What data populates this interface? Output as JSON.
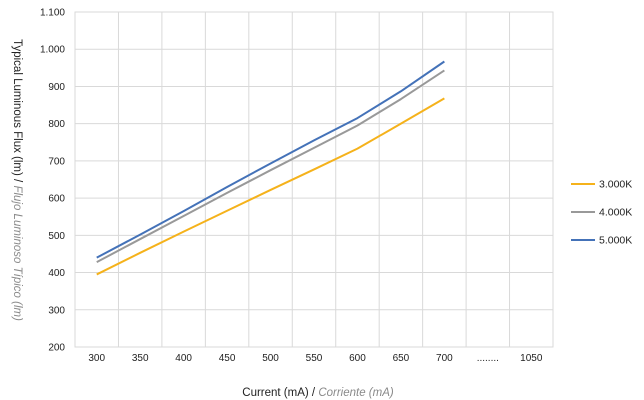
{
  "chart_data": {
    "type": "line",
    "x_ticks": [
      "300",
      "350",
      "400",
      "450",
      "500",
      "550",
      "600",
      "650",
      "700",
      "........",
      "1050"
    ],
    "y_ticks": [
      "200",
      "300",
      "400",
      "500",
      "600",
      "700",
      "800",
      "900",
      "1.000",
      "1.100"
    ],
    "ylim": [
      200,
      1100
    ],
    "grid": true,
    "legend_position": "right",
    "xlabel": {
      "main": "Current (mA)",
      "sep": " / ",
      "alt": "Corriente (mA)"
    },
    "ylabel": {
      "main": "Typical Luminous Flux (lm)",
      "sep": " / ",
      "alt": "Flujo Luminoso Típico (lm)"
    },
    "series": [
      {
        "name": "3.000K",
        "color": "#f5b21b",
        "points": [
          [
            300,
            395
          ],
          [
            350,
            453
          ],
          [
            400,
            510
          ],
          [
            450,
            566
          ],
          [
            500,
            622
          ],
          [
            550,
            677
          ],
          [
            600,
            733
          ],
          [
            650,
            800
          ],
          [
            700,
            868
          ]
        ]
      },
      {
        "name": "4.000K",
        "color": "#999999",
        "points": [
          [
            300,
            428
          ],
          [
            350,
            490
          ],
          [
            400,
            552
          ],
          [
            450,
            614
          ],
          [
            500,
            675
          ],
          [
            550,
            735
          ],
          [
            600,
            795
          ],
          [
            650,
            866
          ],
          [
            700,
            943
          ]
        ]
      },
      {
        "name": "5.000K",
        "color": "#4472b8",
        "points": [
          [
            300,
            440
          ],
          [
            350,
            502
          ],
          [
            400,
            565
          ],
          [
            450,
            630
          ],
          [
            500,
            693
          ],
          [
            550,
            755
          ],
          [
            600,
            815
          ],
          [
            650,
            887
          ],
          [
            700,
            967
          ]
        ]
      }
    ]
  }
}
